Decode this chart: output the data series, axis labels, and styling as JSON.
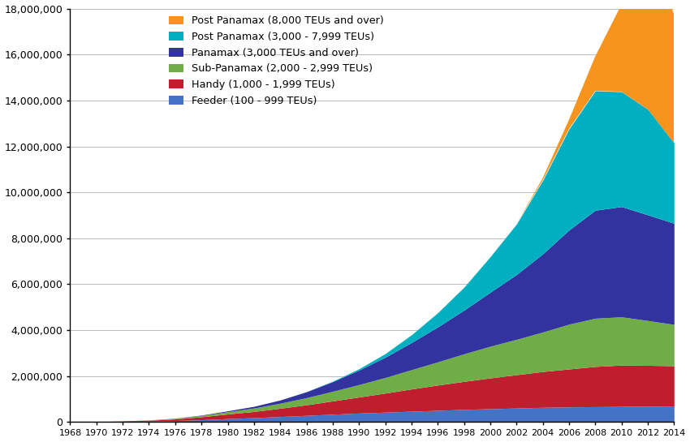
{
  "years": [
    1968,
    1970,
    1972,
    1974,
    1976,
    1978,
    1980,
    1982,
    1984,
    1986,
    1988,
    1990,
    1992,
    1994,
    1996,
    1998,
    2000,
    2002,
    2004,
    2006,
    2008,
    2010,
    2012,
    2014
  ],
  "feeder": [
    5000,
    15000,
    30000,
    45000,
    65000,
    100000,
    150000,
    190000,
    240000,
    290000,
    340000,
    390000,
    430000,
    470000,
    510000,
    550000,
    580000,
    610000,
    640000,
    660000,
    670000,
    680000,
    690000,
    700000
  ],
  "handy": [
    1000,
    5000,
    15000,
    35000,
    70000,
    130000,
    200000,
    270000,
    360000,
    460000,
    580000,
    700000,
    830000,
    970000,
    1100000,
    1220000,
    1340000,
    1450000,
    1560000,
    1650000,
    1750000,
    1800000,
    1780000,
    1750000
  ],
  "sub_panamax": [
    0,
    0,
    3000,
    10000,
    25000,
    55000,
    100000,
    150000,
    220000,
    310000,
    420000,
    540000,
    680000,
    840000,
    1010000,
    1200000,
    1380000,
    1540000,
    1720000,
    1950000,
    2100000,
    2100000,
    1950000,
    1800000
  ],
  "panamax": [
    0,
    0,
    0,
    2000,
    8000,
    18000,
    38000,
    75000,
    140000,
    260000,
    420000,
    630000,
    880000,
    1180000,
    1520000,
    1900000,
    2350000,
    2820000,
    3400000,
    4100000,
    4700000,
    4800000,
    4600000,
    4400000
  ],
  "post_panamax_small": [
    0,
    0,
    0,
    0,
    0,
    0,
    0,
    0,
    0,
    5000,
    20000,
    60000,
    160000,
    340000,
    620000,
    1000000,
    1550000,
    2200000,
    3200000,
    4400000,
    5200000,
    5000000,
    4600000,
    3500000
  ],
  "post_panamax_large": [
    0,
    0,
    0,
    0,
    0,
    0,
    0,
    0,
    0,
    0,
    0,
    0,
    0,
    0,
    0,
    0,
    0,
    0,
    100000,
    400000,
    1500000,
    3800000,
    7000000,
    5600000
  ],
  "colors": {
    "feeder": "#4472C4",
    "handy": "#BE1E2D",
    "sub_panamax": "#70AD47",
    "panamax": "#3333A0",
    "post_panamax_small": "#00B0C0",
    "post_panamax_large": "#F7941D"
  },
  "ylim": [
    0,
    18000000
  ],
  "yticks": [
    0,
    2000000,
    4000000,
    6000000,
    8000000,
    10000000,
    12000000,
    14000000,
    16000000,
    18000000
  ],
  "background_color": "#ffffff"
}
